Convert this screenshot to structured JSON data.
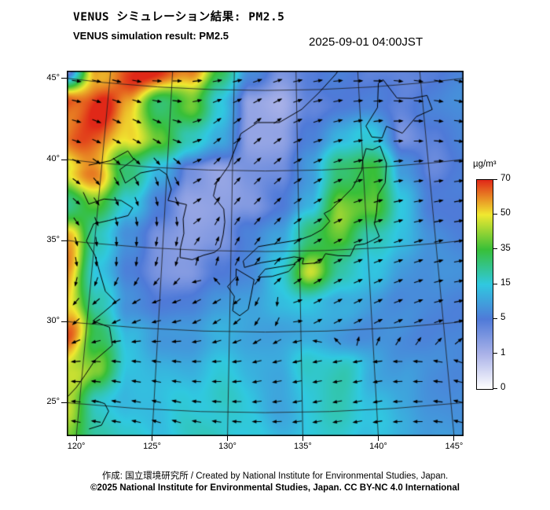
{
  "header": {
    "title_jp": "VENUS シミュレーション結果: PM2.5",
    "title_en": "VENUS simulation result: PM2.5",
    "timestamp": "2025-09-01 04:00JST"
  },
  "map": {
    "lat_ticks": [
      "45°",
      "40°",
      "35°",
      "30°",
      "25°"
    ],
    "lat_values": [
      45,
      40,
      35,
      30,
      25
    ],
    "lon_ticks": [
      "120°",
      "125°",
      "130°",
      "135°",
      "140°",
      "145°"
    ],
    "lon_values": [
      120,
      125,
      130,
      135,
      140,
      145
    ]
  },
  "colorbar": {
    "unit": "µg/m³",
    "tick_labels": [
      "70",
      "50",
      "35",
      "15",
      "5",
      "1",
      "0"
    ],
    "colors": [
      "#ffffff",
      "#aab2e8",
      "#4f7ad8",
      "#30c8e0",
      "#38bf38",
      "#f0e830",
      "#e02818"
    ]
  },
  "footer": {
    "credit": "作成:  国立環境研究所 / Created by National Institute for Environmental Studies, Japan.",
    "license": "©2025 National Institute for Environmental Studies, Japan. CC BY-NC 4.0 International"
  },
  "chart_data": {
    "type": "heatmap",
    "title": "VENUS simulation result: PM2.5",
    "unit": "µg/m³",
    "time": "2025-09-01 04:00JST",
    "lon_range": [
      120,
      145
    ],
    "lat_range": [
      25,
      45
    ],
    "levels": [
      0,
      1,
      5,
      15,
      35,
      50,
      70
    ],
    "level_colors": [
      "#ffffff",
      "#aab2e8",
      "#4f7ad8",
      "#30c8e0",
      "#38bf38",
      "#f0e830",
      "#e02818"
    ],
    "values_note": "approx PM2.5 field, rows north(45N) to south(25S), cols west(120E) to east(145E)",
    "values": [
      [
        2,
        55,
        65,
        65,
        60,
        30,
        8,
        3,
        5,
        6,
        5,
        4,
        5,
        6
      ],
      [
        68,
        70,
        50,
        30,
        45,
        15,
        2,
        1,
        4,
        6,
        6,
        5,
        6,
        7
      ],
      [
        70,
        65,
        55,
        35,
        20,
        10,
        2,
        2,
        6,
        12,
        18,
        3,
        5,
        7
      ],
      [
        45,
        60,
        30,
        12,
        3,
        2,
        3,
        4,
        10,
        25,
        35,
        8,
        4,
        6
      ],
      [
        25,
        40,
        15,
        5,
        2,
        2,
        3,
        5,
        12,
        40,
        45,
        15,
        6,
        5
      ],
      [
        50,
        20,
        8,
        3,
        2,
        3,
        6,
        12,
        30,
        35,
        20,
        12,
        8,
        6
      ],
      [
        55,
        15,
        5,
        3,
        3,
        5,
        8,
        15,
        45,
        25,
        15,
        10,
        8,
        7
      ],
      [
        60,
        20,
        8,
        5,
        6,
        8,
        10,
        12,
        15,
        12,
        10,
        8,
        7,
        6
      ],
      [
        65,
        35,
        12,
        8,
        10,
        12,
        12,
        10,
        10,
        9,
        8,
        8,
        7,
        6
      ],
      [
        55,
        40,
        15,
        12,
        12,
        14,
        12,
        10,
        18,
        20,
        12,
        10,
        8,
        7
      ],
      [
        45,
        20,
        14,
        12,
        15,
        18,
        15,
        12,
        15,
        18,
        14,
        10,
        9,
        8
      ],
      [
        35,
        22,
        16,
        14,
        18,
        20,
        16,
        13,
        16,
        18,
        14,
        11,
        9,
        8
      ]
    ],
    "wind_u": [
      [
        8,
        8,
        7,
        6,
        6,
        6,
        6,
        7,
        8
      ],
      [
        7,
        6,
        4,
        4,
        5,
        6,
        6,
        6,
        7
      ],
      [
        4,
        2,
        1,
        3,
        4,
        5,
        6,
        6,
        6
      ],
      [
        1,
        0,
        -1,
        1,
        3,
        5,
        5,
        6,
        6
      ],
      [
        -3,
        -4,
        -4,
        -3,
        -1,
        2,
        4,
        5,
        5
      ],
      [
        -5,
        -6,
        -6,
        -6,
        -5,
        -5,
        -5,
        -5,
        -4
      ],
      [
        -5,
        -6,
        -6,
        -6,
        -6,
        -5,
        -5,
        -4,
        -4
      ]
    ],
    "wind_v": [
      [
        -1,
        -2,
        0,
        1,
        2,
        1,
        0,
        -1,
        -2
      ],
      [
        -2,
        -3,
        -2,
        3,
        4,
        2,
        1,
        0,
        -1
      ],
      [
        -3,
        -4,
        -4,
        4,
        4,
        3,
        2,
        1,
        1
      ],
      [
        -4,
        -5,
        -4,
        3,
        4,
        3,
        2,
        2,
        1
      ],
      [
        -3,
        -2,
        -1,
        -2,
        -2,
        1,
        2,
        2,
        1
      ],
      [
        0,
        1,
        1,
        0,
        -1,
        -1,
        -1,
        0,
        1
      ],
      [
        1,
        1,
        2,
        1,
        0,
        -1,
        -1,
        0,
        1
      ]
    ]
  }
}
